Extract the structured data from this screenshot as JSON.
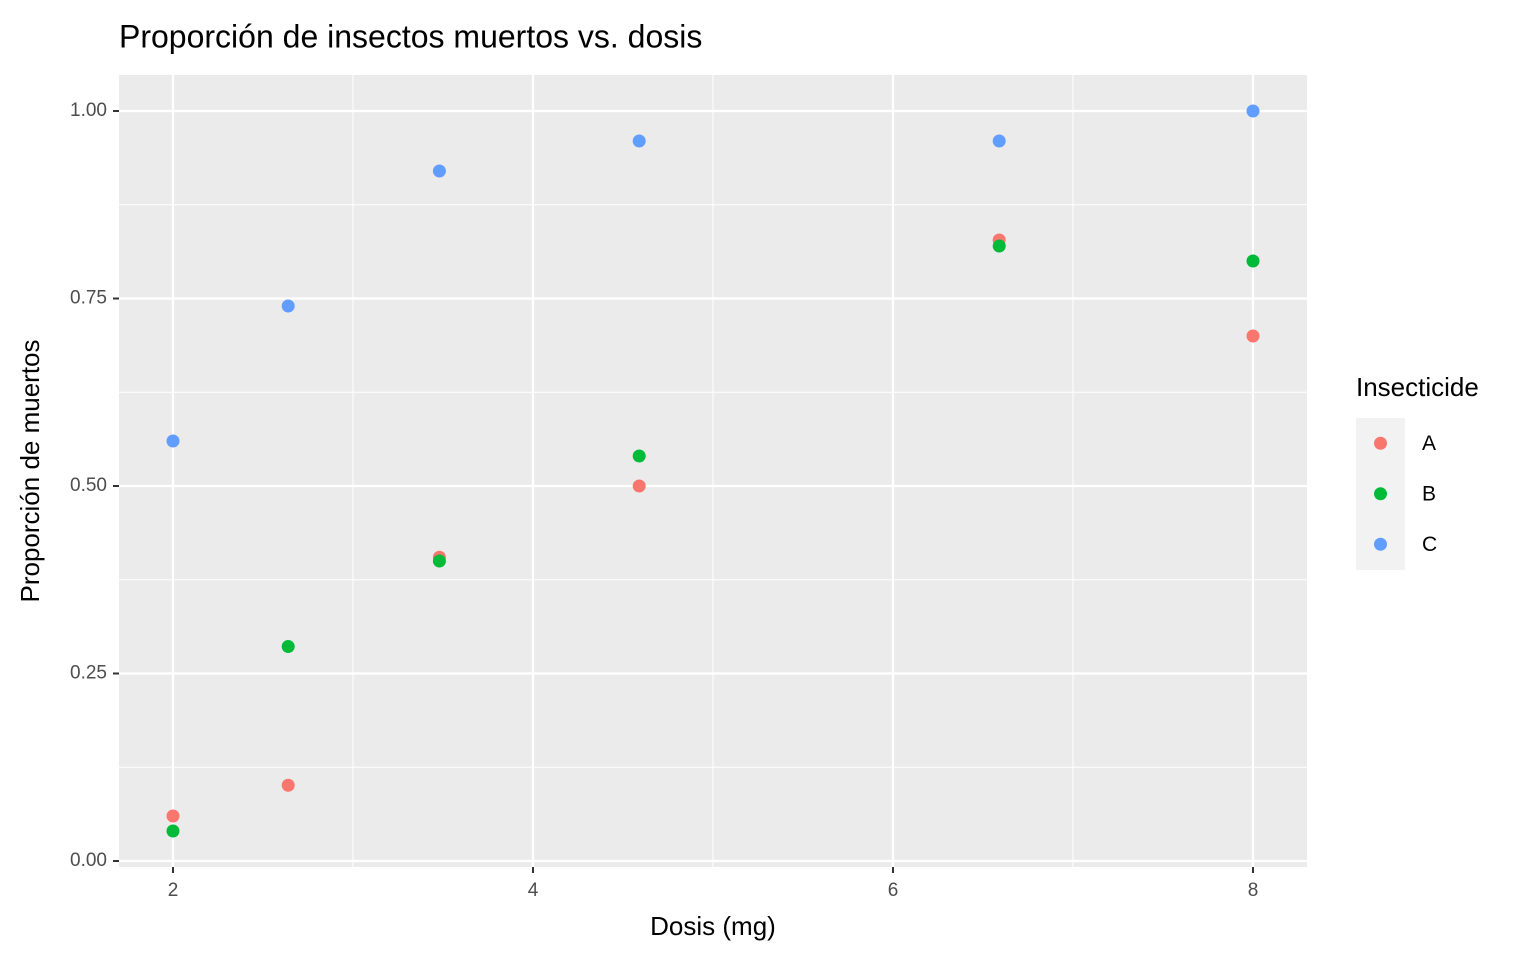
{
  "chart_data": {
    "type": "scatter",
    "title": "Proporción de insectos muertos vs. dosis",
    "x_label": "Dosis (mg)",
    "y_label": "Proporción de muertos",
    "legend_title": "Insecticide",
    "legend_position": "right",
    "grid": true,
    "x": [
      2,
      2.64,
      3.48,
      4.59,
      6.59,
      8
    ],
    "series": [
      {
        "name": "A",
        "color": "#f8766d",
        "values": [
          0.06,
          0.101,
          0.405,
          0.5,
          0.828,
          0.7
        ]
      },
      {
        "name": "B",
        "color": "#00ba38",
        "values": [
          0.04,
          0.286,
          0.4,
          0.54,
          0.82,
          0.8
        ]
      },
      {
        "name": "C",
        "color": "#619cff",
        "values": [
          0.56,
          0.74,
          0.92,
          0.96,
          0.96,
          1.0
        ]
      }
    ],
    "xlim": [
      1.7,
      8.3
    ],
    "ylim": [
      -0.008,
      1.048
    ],
    "xticks": [
      2,
      4,
      6,
      8
    ],
    "yticks": [
      {
        "value": 0,
        "label": "0.00"
      },
      {
        "value": 0.25,
        "label": "0.25"
      },
      {
        "value": 0.5,
        "label": "0.50"
      },
      {
        "value": 0.75,
        "label": "0.75"
      },
      {
        "value": 1,
        "label": "1.00"
      }
    ]
  }
}
